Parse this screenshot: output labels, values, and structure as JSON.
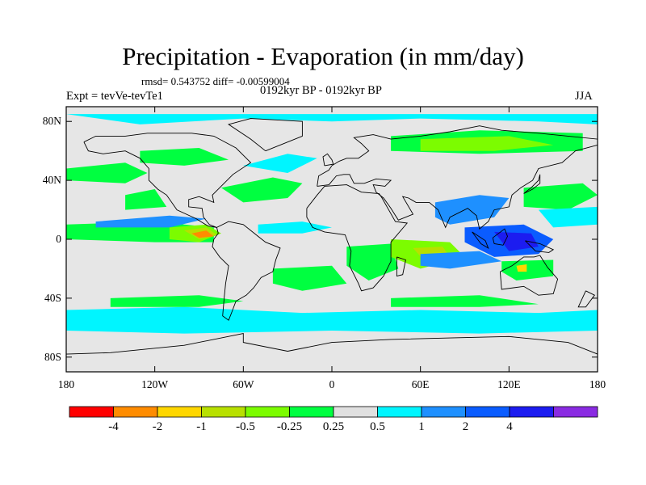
{
  "title": "Precipitation - Evaporation (in mm/day)",
  "stats": {
    "label_rmsd": "rmsd=",
    "rmsd": "0.543752",
    "label_diff": "diff=",
    "diff": "-0.00599004"
  },
  "expt_label": "Expt = tevVe-tevTe1",
  "period_label": "0192kyr BP - 0192kyr BP",
  "season": "JJA",
  "axes": {
    "y_ticks": [
      "80N",
      "40N",
      "0",
      "40S",
      "80S"
    ],
    "x_ticks": [
      "180",
      "120W",
      "60W",
      "0",
      "60E",
      "120E",
      "180"
    ],
    "lat_values": [
      80,
      40,
      0,
      -40,
      -80
    ],
    "lon_values": [
      -180,
      -120,
      -60,
      0,
      60,
      120,
      180
    ]
  },
  "colorbar": {
    "labels": [
      "-4",
      "-2",
      "-1",
      "-0.5",
      "-0.25",
      "0.25",
      "0.5",
      "1",
      "2",
      "4"
    ],
    "colors": [
      "#ff0000",
      "#ff8c00",
      "#ffd700",
      "#b8e000",
      "#7cfc00",
      "#00ff40",
      "#e0e0e0",
      "#00f5ff",
      "#1e90ff",
      "#0a5cff",
      "#1c1cf0",
      "#8a2be2"
    ]
  },
  "colors": {
    "ocean_background": "#e6e6e6",
    "coastline": "#000000"
  }
}
